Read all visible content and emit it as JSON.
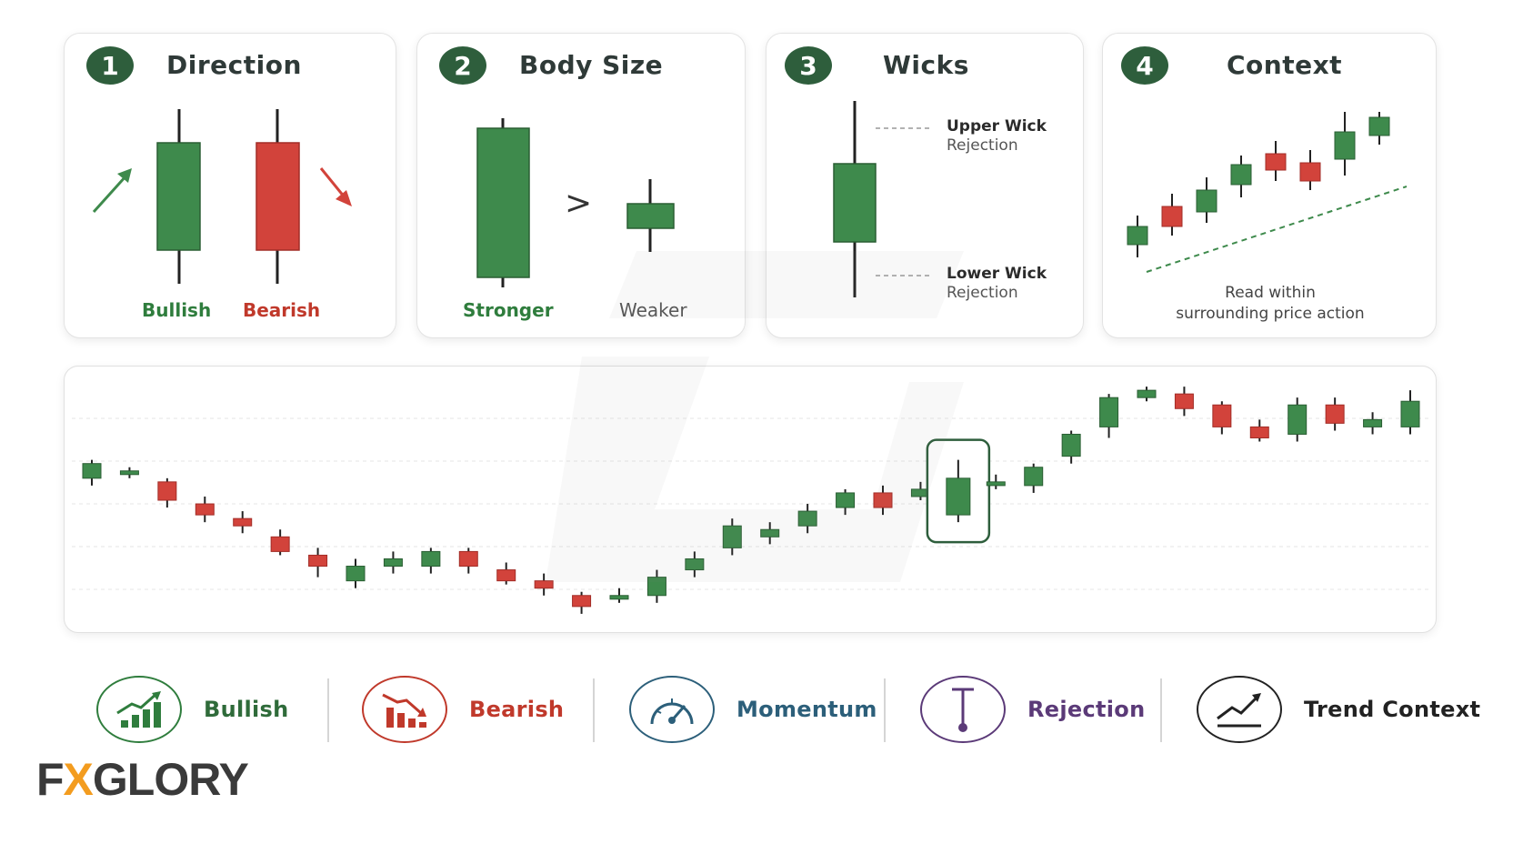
{
  "cards": [
    {
      "number": "1",
      "title": "Direction",
      "labels": {
        "left": "Bullish",
        "right": "Bearish"
      }
    },
    {
      "number": "2",
      "title": "Body Size",
      "labels": {
        "left": "Stronger",
        "right": "Weaker"
      },
      "compare": ">"
    },
    {
      "number": "3",
      "title": "Wicks",
      "upper": {
        "title": "Upper Wick",
        "sub": "Rejection"
      },
      "lower": {
        "title": "Lower Wick",
        "sub": "Rejection"
      }
    },
    {
      "number": "4",
      "title": "Context",
      "caption_line1": "Read within",
      "caption_line2": "surrounding price action"
    }
  ],
  "legend": [
    {
      "label": "Bullish",
      "icon": "bullish-chart-icon",
      "color": "#2f7d3d"
    },
    {
      "label": "Bearish",
      "icon": "bearish-chart-icon",
      "color": "#c0392b"
    },
    {
      "label": "Momentum",
      "icon": "speedometer-icon",
      "color": "#2c5f7a"
    },
    {
      "label": "Rejection",
      "icon": "wick-pin-icon",
      "color": "#5b3a78"
    },
    {
      "label": "Trend Context",
      "icon": "trend-line-icon",
      "color": "#222222"
    }
  ],
  "logo": {
    "before": "F",
    "accent": "X",
    "after": "GLORY"
  },
  "colors": {
    "bull": "#3e8a4c",
    "bear": "#d2433b",
    "badge": "#2e5e3c"
  },
  "chart_data": {
    "type": "candlestick",
    "title": "",
    "highlighted_index": 23,
    "candles": [
      {
        "o": 84,
        "c": 88,
        "h": 89,
        "l": 82
      },
      {
        "o": 85,
        "c": 86,
        "h": 87,
        "l": 84
      },
      {
        "o": 83,
        "c": 78,
        "h": 84,
        "l": 76
      },
      {
        "o": 77,
        "c": 74,
        "h": 79,
        "l": 72
      },
      {
        "o": 73,
        "c": 71,
        "h": 75,
        "l": 69
      },
      {
        "o": 68,
        "c": 64,
        "h": 70,
        "l": 63
      },
      {
        "o": 63,
        "c": 60,
        "h": 65,
        "l": 57
      },
      {
        "o": 56,
        "c": 60,
        "h": 62,
        "l": 54
      },
      {
        "o": 60,
        "c": 62,
        "h": 64,
        "l": 58
      },
      {
        "o": 60,
        "c": 64,
        "h": 65,
        "l": 58
      },
      {
        "o": 64,
        "c": 60,
        "h": 65,
        "l": 58
      },
      {
        "o": 59,
        "c": 56,
        "h": 61,
        "l": 55
      },
      {
        "o": 56,
        "c": 54,
        "h": 58,
        "l": 52
      },
      {
        "o": 52,
        "c": 49,
        "h": 53,
        "l": 47
      },
      {
        "o": 51,
        "c": 52,
        "h": 54,
        "l": 50
      },
      {
        "o": 52,
        "c": 57,
        "h": 59,
        "l": 50
      },
      {
        "o": 59,
        "c": 62,
        "h": 64,
        "l": 57
      },
      {
        "o": 65,
        "c": 71,
        "h": 73,
        "l": 63
      },
      {
        "o": 68,
        "c": 70,
        "h": 72,
        "l": 66
      },
      {
        "o": 71,
        "c": 75,
        "h": 77,
        "l": 69
      },
      {
        "o": 76,
        "c": 80,
        "h": 81,
        "l": 74
      },
      {
        "o": 80,
        "c": 76,
        "h": 82,
        "l": 74
      },
      {
        "o": 79,
        "c": 81,
        "h": 83,
        "l": 78
      },
      {
        "o": 74,
        "c": 84,
        "h": 89,
        "l": 72
      },
      {
        "o": 82,
        "c": 83,
        "h": 85,
        "l": 81
      },
      {
        "o": 82,
        "c": 87,
        "h": 88,
        "l": 80
      },
      {
        "o": 90,
        "c": 96,
        "h": 97,
        "l": 88
      },
      {
        "o": 98,
        "c": 106,
        "h": 107,
        "l": 95
      },
      {
        "o": 106,
        "c": 108,
        "h": 109,
        "l": 105
      },
      {
        "o": 107,
        "c": 103,
        "h": 109,
        "l": 101
      },
      {
        "o": 104,
        "c": 98,
        "h": 105,
        "l": 96
      },
      {
        "o": 98,
        "c": 95,
        "h": 100,
        "l": 94
      },
      {
        "o": 96,
        "c": 104,
        "h": 106,
        "l": 94
      },
      {
        "o": 104,
        "c": 99,
        "h": 106,
        "l": 97
      },
      {
        "o": 98,
        "c": 100,
        "h": 102,
        "l": 96
      },
      {
        "o": 98,
        "c": 105,
        "h": 108,
        "l": 96
      }
    ],
    "ylim": [
      44,
      112
    ],
    "grid": true
  }
}
